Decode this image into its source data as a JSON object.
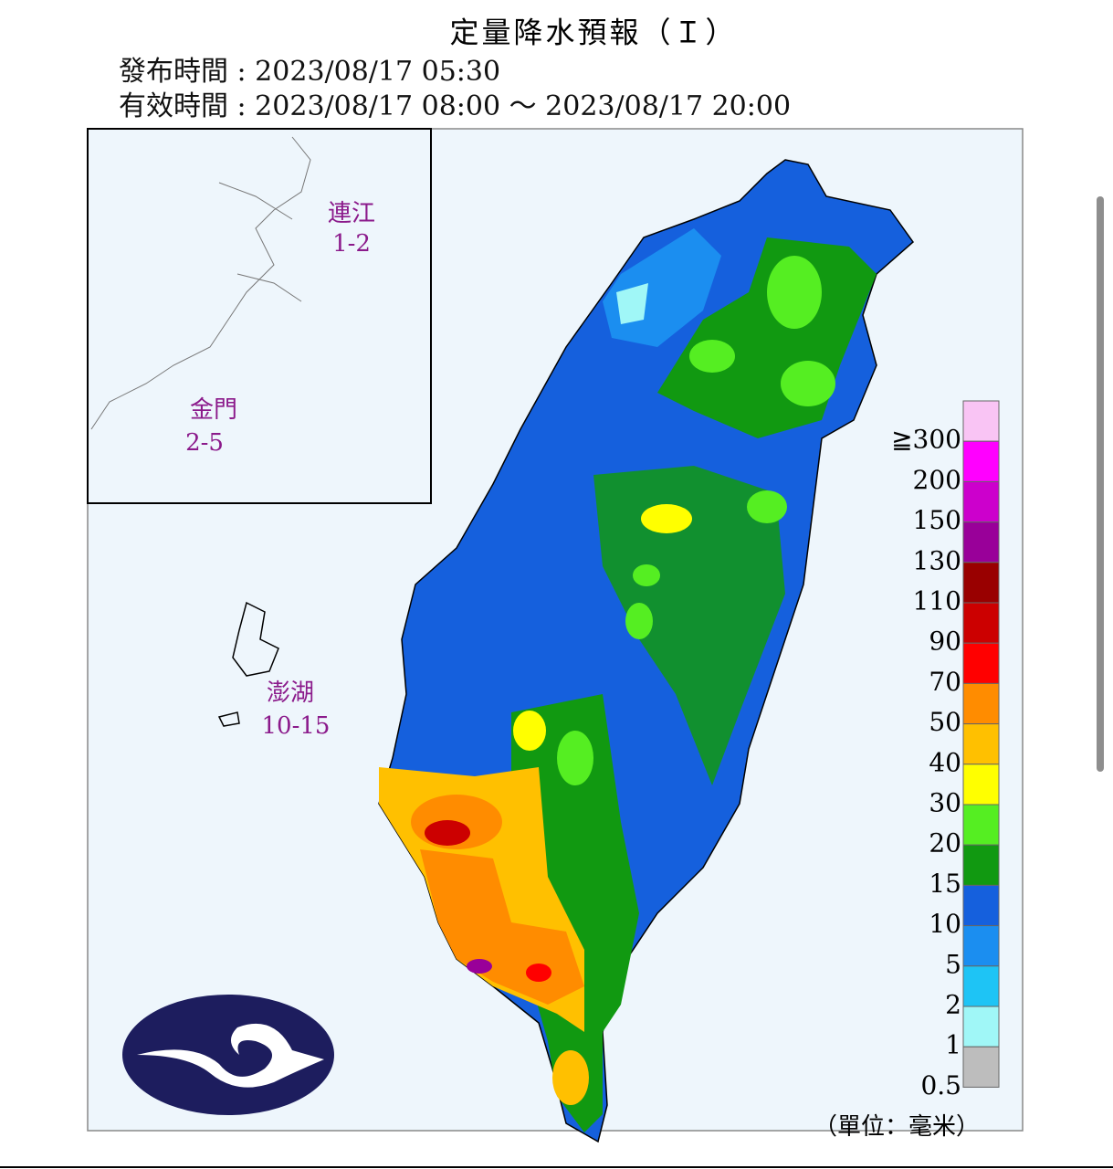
{
  "header": {
    "title": "定量降水預報（Ｉ）",
    "issued": "發布時間 : 2023/08/17 05:30",
    "valid": "有效時間 : 2023/08/17 08:00 ～ 2023/08/17 20:00"
  },
  "islands": [
    {
      "name": "連江",
      "range": "1-2"
    },
    {
      "name": "金門",
      "range": "2-5"
    },
    {
      "name": "澎湖",
      "range": "10-15"
    }
  ],
  "legend": {
    "unit": "（單位：毫米）",
    "items": [
      {
        "label": "≧300",
        "color": "#f9c4f4"
      },
      {
        "label": "200",
        "color": "#ff00ff"
      },
      {
        "label": "150",
        "color": "#cc00cc"
      },
      {
        "label": "130",
        "color": "#990099"
      },
      {
        "label": "110",
        "color": "#990000"
      },
      {
        "label": "90",
        "color": "#cc0000"
      },
      {
        "label": "70",
        "color": "#ff0000"
      },
      {
        "label": "50",
        "color": "#ff8c00"
      },
      {
        "label": "40",
        "color": "#ffc000"
      },
      {
        "label": "30",
        "color": "#ffff00"
      },
      {
        "label": "20",
        "color": "#55ee22"
      },
      {
        "label": "15",
        "color": "#119911"
      },
      {
        "label": "10",
        "color": "#1560dd"
      },
      {
        "label": "5",
        "color": "#1b8ef0"
      },
      {
        "label": "2",
        "color": "#1ec4f5"
      },
      {
        "label": "1",
        "color": "#a0f7f7"
      },
      {
        "label": "0.5",
        "color": "#bdbdbd"
      }
    ]
  }
}
